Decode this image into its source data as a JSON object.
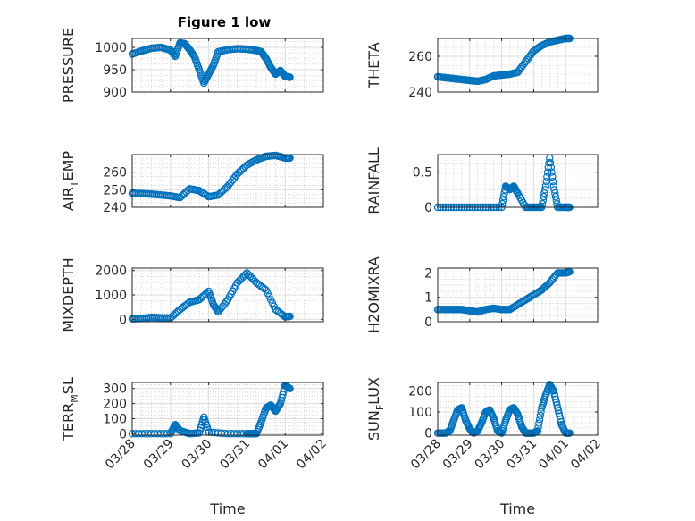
{
  "figure_title": "Figure 1 low",
  "colors": {
    "marker": "#0072BD",
    "axes": "#262626",
    "grid": "#dcdcdc"
  },
  "chart_data": [
    {
      "id": "pressure",
      "type": "scatter",
      "title": "Figure 1 low",
      "xlabel": "",
      "ylabel": "PRESSURE",
      "ylim": [
        900,
        1020
      ],
      "yticks": [
        900,
        950,
        1000
      ],
      "grid": true,
      "x": [
        "03/28 00:00",
        "03/28 06:00",
        "03/28 12:00",
        "03/28 18:00",
        "03/29 00:00",
        "03/29 03:00",
        "03/29 06:00",
        "03/29 09:00",
        "03/29 12:00",
        "03/29 15:00",
        "03/29 18:00",
        "03/29 21:00",
        "03/30 00:00",
        "03/30 03:00",
        "03/30 06:00",
        "03/30 12:00",
        "03/30 18:00",
        "03/31 00:00",
        "03/31 06:00",
        "03/31 09:00",
        "03/31 12:00",
        "03/31 15:00",
        "03/31 18:00",
        "03/31 21:00",
        "04/01 00:00",
        "04/01 03:00"
      ],
      "y": [
        985,
        992,
        998,
        1000,
        994,
        980,
        1010,
        1008,
        995,
        980,
        950,
        920,
        940,
        960,
        990,
        995,
        997,
        996,
        993,
        990,
        975,
        955,
        940,
        948,
        935,
        933
      ]
    },
    {
      "id": "theta",
      "type": "scatter",
      "xlabel": "",
      "ylabel": "THETA",
      "ylim": [
        240,
        270
      ],
      "yticks": [
        240,
        260
      ],
      "grid": true,
      "x": [
        "03/28 00:00",
        "03/28 06:00",
        "03/28 12:00",
        "03/28 18:00",
        "03/29 00:00",
        "03/29 06:00",
        "03/29 12:00",
        "03/29 18:00",
        "03/30 00:00",
        "03/30 06:00",
        "03/30 12:00",
        "03/30 18:00",
        "03/31 00:00",
        "03/31 06:00",
        "03/31 12:00",
        "03/31 18:00",
        "04/01 00:00",
        "04/01 03:00"
      ],
      "y": [
        248.5,
        248,
        247.5,
        247,
        246.5,
        246,
        247,
        249,
        249.5,
        250,
        251,
        257,
        263,
        266,
        268,
        269,
        270,
        270
      ]
    },
    {
      "id": "air_temp",
      "type": "scatter",
      "xlabel": "",
      "ylabel": "AIR_TEMP",
      "ylim": [
        240,
        270
      ],
      "yticks": [
        240,
        250,
        260
      ],
      "grid": true,
      "x": [
        "03/28 00:00",
        "03/28 06:00",
        "03/28 12:00",
        "03/28 18:00",
        "03/29 00:00",
        "03/29 06:00",
        "03/29 12:00",
        "03/29 18:00",
        "03/30 00:00",
        "03/30 06:00",
        "03/30 12:00",
        "03/30 18:00",
        "03/31 00:00",
        "03/31 06:00",
        "03/31 12:00",
        "03/31 18:00",
        "04/01 00:00",
        "04/01 03:00"
      ],
      "y": [
        248,
        247.8,
        247.5,
        247,
        246.5,
        245.5,
        250.5,
        249.5,
        246,
        247,
        252,
        259,
        264,
        267,
        269,
        269.5,
        268,
        268
      ]
    },
    {
      "id": "rainfall",
      "type": "scatter",
      "xlabel": "",
      "ylabel": "RAINFALL",
      "ylim": [
        0,
        0.75
      ],
      "yticks": [
        0,
        0.5
      ],
      "grid": true,
      "x": [
        "03/28 00:00",
        "03/28 12:00",
        "03/29 00:00",
        "03/29 12:00",
        "03/30 00:00",
        "03/30 03:00",
        "03/30 06:00",
        "03/30 09:00",
        "03/30 12:00",
        "03/30 18:00",
        "03/31 00:00",
        "03/31 06:00",
        "03/31 09:00",
        "03/31 12:00",
        "03/31 15:00",
        "03/31 18:00",
        "04/01 00:00",
        "04/01 03:00"
      ],
      "y": [
        0,
        0,
        0,
        0,
        0,
        0.3,
        0.25,
        0.3,
        0.2,
        0,
        0,
        0,
        0.3,
        0.7,
        0.3,
        0,
        0,
        0
      ]
    },
    {
      "id": "mixdepth",
      "type": "scatter",
      "xlabel": "",
      "ylabel": "MIXDEPTH",
      "ylim": [
        -100,
        2100
      ],
      "yticks": [
        0,
        1000,
        2000
      ],
      "grid": true,
      "x": [
        "03/28 00:00",
        "03/28 06:00",
        "03/28 12:00",
        "03/28 18:00",
        "03/29 00:00",
        "03/29 06:00",
        "03/29 12:00",
        "03/29 18:00",
        "03/30 00:00",
        "03/30 03:00",
        "03/30 06:00",
        "03/30 12:00",
        "03/30 18:00",
        "03/31 00:00",
        "03/31 06:00",
        "03/31 12:00",
        "03/31 18:00",
        "04/01 00:00",
        "04/01 03:00"
      ],
      "y": [
        20,
        30,
        80,
        60,
        50,
        400,
        700,
        800,
        1150,
        600,
        300,
        800,
        1500,
        1900,
        1500,
        1200,
        400,
        100,
        120
      ]
    },
    {
      "id": "h2omixra",
      "type": "scatter",
      "xlabel": "",
      "ylabel": "H2OMIXRA",
      "ylim": [
        0,
        2.2
      ],
      "yticks": [
        0,
        1,
        2
      ],
      "grid": true,
      "x": [
        "03/28 00:00",
        "03/28 06:00",
        "03/28 12:00",
        "03/28 18:00",
        "03/29 00:00",
        "03/29 06:00",
        "03/29 12:00",
        "03/29 18:00",
        "03/30 00:00",
        "03/30 06:00",
        "03/30 12:00",
        "03/30 18:00",
        "03/31 00:00",
        "03/31 06:00",
        "03/31 12:00",
        "03/31 18:00",
        "04/01 00:00",
        "04/01 03:00"
      ],
      "y": [
        0.5,
        0.5,
        0.5,
        0.5,
        0.45,
        0.4,
        0.5,
        0.55,
        0.5,
        0.5,
        0.7,
        0.9,
        1.1,
        1.3,
        1.6,
        2.0,
        2.0,
        2.05
      ]
    },
    {
      "id": "terr_msl",
      "type": "scatter",
      "xlabel": "Time",
      "ylabel": "TERR_MSL",
      "ylim": [
        -10,
        340
      ],
      "yticks": [
        0,
        100,
        200,
        300
      ],
      "grid": true,
      "xticks": [
        "03/28",
        "03/29",
        "03/30",
        "03/31",
        "04/01",
        "04/02"
      ],
      "x": [
        "03/28 00:00",
        "03/28 12:00",
        "03/29 00:00",
        "03/29 03:00",
        "03/29 06:00",
        "03/29 12:00",
        "03/29 18:00",
        "03/29 21:00",
        "03/30 00:00",
        "03/30 12:00",
        "03/31 00:00",
        "03/31 03:00",
        "03/31 06:00",
        "03/31 09:00",
        "03/31 12:00",
        "03/31 15:00",
        "03/31 18:00",
        "03/31 21:00",
        "04/01 00:00",
        "04/01 03:00"
      ],
      "y": [
        0,
        0,
        0,
        60,
        20,
        0,
        5,
        110,
        10,
        0,
        0,
        0,
        0,
        80,
        170,
        190,
        150,
        200,
        320,
        300
      ]
    },
    {
      "id": "sun_flux",
      "type": "scatter",
      "xlabel": "Time",
      "ylabel": "SUN_FLUX",
      "ylim": [
        -10,
        240
      ],
      "yticks": [
        0,
        100,
        200
      ],
      "grid": true,
      "xticks": [
        "03/28",
        "03/29",
        "03/30",
        "03/31",
        "04/01",
        "04/02"
      ],
      "x": [
        "03/28 00:00",
        "03/28 06:00",
        "03/28 09:00",
        "03/28 12:00",
        "03/28 15:00",
        "03/28 18:00",
        "03/28 21:00",
        "03/29 00:00",
        "03/29 03:00",
        "03/29 06:00",
        "03/29 09:00",
        "03/29 12:00",
        "03/29 15:00",
        "03/29 18:00",
        "03/29 21:00",
        "03/30 00:00",
        "03/30 03:00",
        "03/30 06:00",
        "03/30 09:00",
        "03/30 12:00",
        "03/30 15:00",
        "03/30 18:00",
        "03/30 21:00",
        "03/31 00:00",
        "03/31 03:00",
        "03/31 06:00",
        "03/31 09:00",
        "03/31 12:00",
        "03/31 15:00",
        "03/31 18:00",
        "03/31 21:00",
        "04/01 00:00",
        "04/01 03:00"
      ],
      "y": [
        0,
        0,
        10,
        60,
        110,
        120,
        60,
        20,
        0,
        10,
        50,
        100,
        110,
        70,
        10,
        0,
        60,
        110,
        120,
        90,
        30,
        0,
        0,
        0,
        10,
        120,
        180,
        230,
        200,
        120,
        40,
        0,
        0
      ]
    }
  ]
}
